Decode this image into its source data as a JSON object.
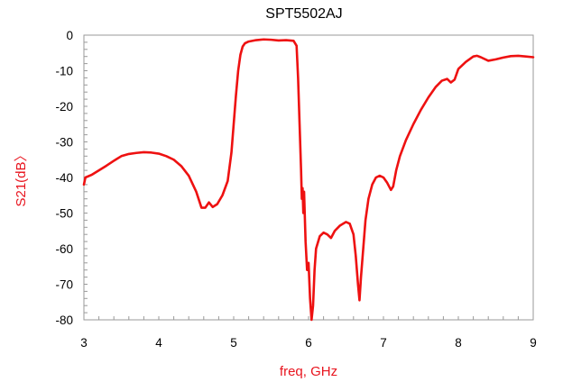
{
  "chart_data": {
    "type": "line",
    "title": "SPT5502AJ",
    "xlabel": "freq, GHz",
    "ylabel": "S21(dB〉",
    "xlim": [
      3,
      9
    ],
    "ylim": [
      -80,
      0
    ],
    "x_ticks": [
      "3",
      "4",
      "5",
      "6",
      "7",
      "8",
      "9"
    ],
    "y_ticks": [
      "0",
      "-10",
      "-20",
      "-30",
      "-40",
      "-50",
      "-60",
      "-70",
      "-80"
    ],
    "grid": false,
    "legend": "none",
    "series": [
      {
        "color": "#ee1111",
        "points": [
          [
            3.0,
            -42.0
          ],
          [
            3.02,
            -40.0
          ],
          [
            3.1,
            -39.3
          ],
          [
            3.2,
            -38.0
          ],
          [
            3.3,
            -36.7
          ],
          [
            3.4,
            -35.3
          ],
          [
            3.5,
            -34.0
          ],
          [
            3.6,
            -33.4
          ],
          [
            3.7,
            -33.1
          ],
          [
            3.8,
            -32.9
          ],
          [
            3.9,
            -33.0
          ],
          [
            4.0,
            -33.3
          ],
          [
            4.1,
            -34.0
          ],
          [
            4.2,
            -35.0
          ],
          [
            4.3,
            -36.8
          ],
          [
            4.4,
            -39.5
          ],
          [
            4.5,
            -44.0
          ],
          [
            4.57,
            -48.5
          ],
          [
            4.62,
            -48.5
          ],
          [
            4.67,
            -47.0
          ],
          [
            4.72,
            -48.3
          ],
          [
            4.78,
            -47.5
          ],
          [
            4.85,
            -45.0
          ],
          [
            4.92,
            -41.0
          ],
          [
            4.97,
            -33.0
          ],
          [
            5.0,
            -25.0
          ],
          [
            5.03,
            -17.0
          ],
          [
            5.06,
            -10.0
          ],
          [
            5.09,
            -5.5
          ],
          [
            5.12,
            -3.2
          ],
          [
            5.15,
            -2.3
          ],
          [
            5.2,
            -1.8
          ],
          [
            5.3,
            -1.4
          ],
          [
            5.4,
            -1.2
          ],
          [
            5.5,
            -1.3
          ],
          [
            5.6,
            -1.5
          ],
          [
            5.7,
            -1.4
          ],
          [
            5.8,
            -1.6
          ],
          [
            5.84,
            -3.0
          ],
          [
            5.86,
            -12.0
          ],
          [
            5.88,
            -25.0
          ],
          [
            5.9,
            -38.0
          ],
          [
            5.91,
            -46.0
          ],
          [
            5.92,
            -43.0
          ],
          [
            5.93,
            -50.0
          ],
          [
            5.94,
            -44.0
          ],
          [
            5.96,
            -58.0
          ],
          [
            5.98,
            -66.0
          ],
          [
            6.0,
            -64.0
          ],
          [
            6.02,
            -74.0
          ],
          [
            6.04,
            -80.0
          ],
          [
            6.06,
            -76.0
          ],
          [
            6.08,
            -66.0
          ],
          [
            6.1,
            -60.0
          ],
          [
            6.15,
            -56.5
          ],
          [
            6.2,
            -55.5
          ],
          [
            6.25,
            -56.0
          ],
          [
            6.3,
            -57.0
          ],
          [
            6.35,
            -55.0
          ],
          [
            6.42,
            -53.5
          ],
          [
            6.5,
            -52.5
          ],
          [
            6.55,
            -53.0
          ],
          [
            6.6,
            -56.0
          ],
          [
            6.63,
            -62.0
          ],
          [
            6.66,
            -70.0
          ],
          [
            6.68,
            -74.5
          ],
          [
            6.7,
            -68.0
          ],
          [
            6.73,
            -60.0
          ],
          [
            6.76,
            -52.0
          ],
          [
            6.8,
            -46.0
          ],
          [
            6.85,
            -42.0
          ],
          [
            6.9,
            -40.0
          ],
          [
            6.95,
            -39.5
          ],
          [
            7.0,
            -40.0
          ],
          [
            7.05,
            -41.5
          ],
          [
            7.1,
            -43.5
          ],
          [
            7.13,
            -42.5
          ],
          [
            7.17,
            -38.0
          ],
          [
            7.22,
            -34.0
          ],
          [
            7.3,
            -29.5
          ],
          [
            7.4,
            -25.0
          ],
          [
            7.5,
            -21.0
          ],
          [
            7.6,
            -17.5
          ],
          [
            7.7,
            -14.5
          ],
          [
            7.78,
            -12.8
          ],
          [
            7.85,
            -12.3
          ],
          [
            7.9,
            -13.3
          ],
          [
            7.95,
            -12.5
          ],
          [
            8.0,
            -9.5
          ],
          [
            8.1,
            -7.5
          ],
          [
            8.2,
            -6.0
          ],
          [
            8.25,
            -5.8
          ],
          [
            8.3,
            -6.2
          ],
          [
            8.4,
            -7.2
          ],
          [
            8.5,
            -6.8
          ],
          [
            8.6,
            -6.3
          ],
          [
            8.7,
            -5.9
          ],
          [
            8.8,
            -5.8
          ],
          [
            8.9,
            -6.0
          ],
          [
            9.0,
            -6.2
          ]
        ]
      }
    ]
  }
}
